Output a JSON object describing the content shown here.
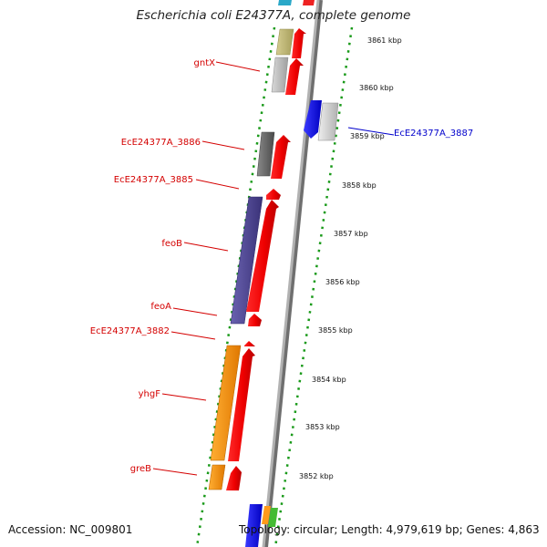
{
  "title": "Escherichia coli E24377A, complete genome",
  "accession": "Accession: NC_009801",
  "topology": "Topology: circular; Length: 4,979,619 bp; Genes: 4,863",
  "colors": {
    "forward_label": "#d40000",
    "reverse_label": "#0000cc",
    "backbone": "#9a9a9a",
    "tick": "#1a9a1a"
  },
  "ticks": [
    "3861 kbp",
    "3860 kbp",
    "3859 kbp",
    "3858 kbp",
    "3857 kbp",
    "3856 kbp",
    "3855 kbp",
    "3854 kbp",
    "3853 kbp",
    "3852 kbp"
  ],
  "gene_labels": {
    "gntX": "gntX",
    "ecE24377A_3887": "EcE24377A_3887",
    "ecE24377A_3886": "EcE24377A_3886",
    "ecE24377A_3885": "EcE24377A_3885",
    "feoB": "feoB",
    "feoA": "feoA",
    "ecE24377A_3882": "EcE24377A_3882",
    "yhgF": "yhgF",
    "greB": "greB"
  }
}
